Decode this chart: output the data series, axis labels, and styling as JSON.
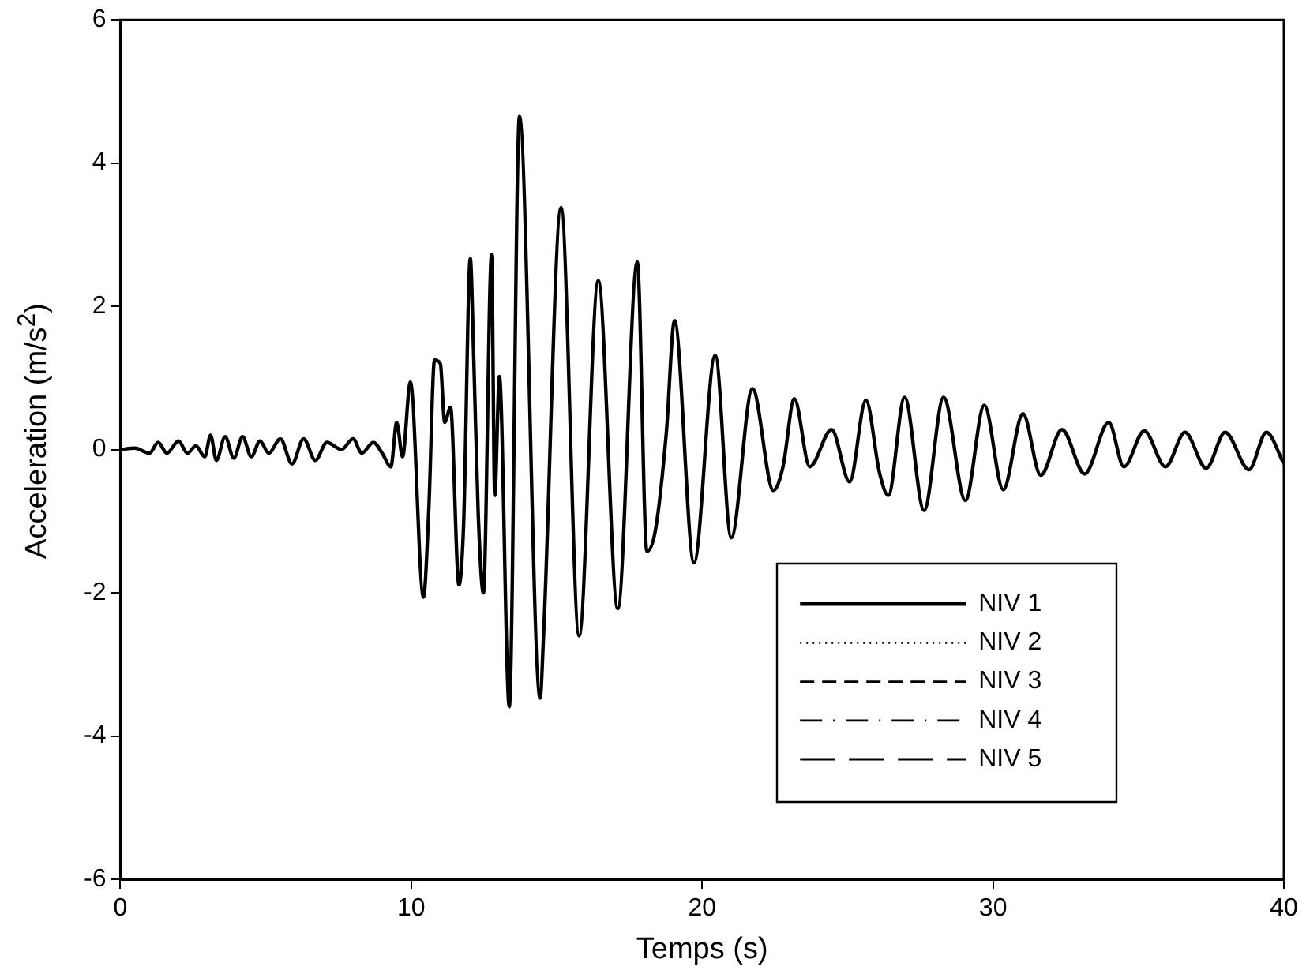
{
  "chart_data": {
    "type": "line",
    "xlabel": "Temps (s)",
    "ylabel": "Acceleration (m/s$^{2}$)",
    "x": [
      0,
      0.5,
      1,
      1.3,
      1.6,
      2,
      2.3,
      2.6,
      2.9,
      3.1,
      3.3,
      3.6,
      3.9,
      4.2,
      4.5,
      4.8,
      5.1,
      5.5,
      5.9,
      6.3,
      6.7,
      7.1,
      7.6,
      8,
      8.3,
      8.7,
      9,
      9.3,
      9.5,
      9.7,
      9.97,
      10.42,
      10.6,
      10.8,
      11,
      11.15,
      11.35,
      11.64,
      11.8,
      12.03,
      12.15,
      12.3,
      12.48,
      12.76,
      12.87,
      13.03,
      13.37,
      13.72,
      14.43,
      14.55,
      15.15,
      15.77,
      16.43,
      17.1,
      17.77,
      18.1,
      18.4,
      18.77,
      19.05,
      19.72,
      20.45,
      21,
      21.73,
      22.45,
      22.78,
      23.17,
      23.7,
      24.45,
      25.07,
      25.63,
      26.1,
      26.4,
      26.96,
      27.63,
      28.3,
      29.05,
      29.7,
      30.35,
      31.03,
      31.64,
      32.37,
      33.15,
      33.98,
      34.5,
      35.2,
      35.93,
      36.6,
      37.33,
      37.98,
      38.8,
      39.4,
      40
    ],
    "series": [
      {
        "name": "NIV 1",
        "color": "#000000",
        "line_style": "solid",
        "values": [
          0,
          0.02,
          -0.05,
          0.1,
          -0.05,
          0.12,
          -0.05,
          0.05,
          -0.1,
          0.2,
          -0.15,
          0.18,
          -0.12,
          0.18,
          -0.1,
          0.12,
          -0.05,
          0.15,
          -0.2,
          0.15,
          -0.15,
          0.1,
          0,
          0.15,
          -0.05,
          0.1,
          -0.05,
          -0.24,
          0.38,
          -0.1,
          0.94,
          -2.06,
          -0.87,
          1.25,
          1.2,
          0.38,
          0.59,
          -1.89,
          -1.04,
          2.67,
          1.25,
          -0.87,
          -2,
          2.72,
          -0.64,
          1.02,
          -3.59,
          4.65,
          -3.47,
          -2.58,
          3.38,
          -2.6,
          2.36,
          -2.22,
          2.62,
          -1.42,
          -1.11,
          0.24,
          1.8,
          -1.58,
          1.32,
          -1.23,
          0.85,
          -0.57,
          -0.24,
          0.71,
          -0.24,
          0.28,
          -0.45,
          0.69,
          -0.33,
          -0.64,
          0.73,
          -0.85,
          0.73,
          -0.71,
          0.62,
          -0.56,
          0.5,
          -0.36,
          0.28,
          -0.34,
          0.38,
          -0.24,
          0.26,
          -0.24,
          0.24,
          -0.26,
          0.24,
          -0.28,
          0.24,
          -0.2
        ]
      },
      {
        "name": "NIV 2",
        "color": "#000000",
        "line_style": "dotted",
        "values": [
          null,
          null,
          null,
          null,
          null,
          null,
          null,
          null,
          null,
          null,
          null,
          null,
          null,
          null,
          null,
          null,
          null,
          null,
          null,
          null,
          null,
          null,
          null,
          null,
          null,
          null,
          null,
          null,
          null,
          null,
          null,
          null,
          null,
          null,
          null,
          null,
          null,
          null,
          null,
          null,
          null,
          null,
          null,
          null,
          null,
          null,
          null,
          null,
          null,
          null,
          null,
          null,
          null,
          null,
          null,
          null,
          null,
          null,
          null,
          null,
          null,
          null,
          null,
          null,
          null,
          null,
          null,
          null,
          null,
          null,
          null,
          null,
          null,
          null,
          null,
          null,
          null,
          null,
          null,
          null,
          null,
          null,
          null,
          null,
          null,
          null,
          null,
          null,
          null,
          null,
          null,
          null
        ]
      },
      {
        "name": "NIV 3",
        "color": "#000000",
        "line_style": "dashed",
        "values": [
          null,
          null,
          null,
          null,
          null,
          null,
          null,
          null,
          null,
          null,
          null,
          null,
          null,
          null,
          null,
          null,
          null,
          null,
          null,
          null,
          null,
          null,
          null,
          null,
          null,
          null,
          null,
          null,
          null,
          null,
          null,
          null,
          null,
          null,
          null,
          null,
          null,
          null,
          null,
          null,
          null,
          null,
          null,
          null,
          null,
          null,
          null,
          null,
          null,
          null,
          null,
          null,
          null,
          null,
          null,
          null,
          null,
          null,
          null,
          null,
          null,
          null,
          null,
          null,
          null,
          null,
          null,
          null,
          null,
          null,
          null,
          null,
          null,
          null,
          null,
          null,
          null,
          null,
          null,
          null,
          null,
          null,
          null,
          null,
          null,
          null,
          null,
          null,
          null,
          null,
          null,
          null
        ]
      },
      {
        "name": "NIV 4",
        "color": "#000000",
        "line_style": "dashdot",
        "values": [
          null,
          null,
          null,
          null,
          null,
          null,
          null,
          null,
          null,
          null,
          null,
          null,
          null,
          null,
          null,
          null,
          null,
          null,
          null,
          null,
          null,
          null,
          null,
          null,
          null,
          null,
          null,
          null,
          null,
          null,
          null,
          null,
          null,
          null,
          null,
          null,
          null,
          null,
          null,
          null,
          null,
          null,
          null,
          null,
          null,
          null,
          null,
          null,
          null,
          null,
          null,
          null,
          null,
          null,
          null,
          null,
          null,
          null,
          null,
          null,
          null,
          null,
          null,
          null,
          null,
          null,
          null,
          null,
          null,
          null,
          null,
          null,
          null,
          null,
          null,
          null,
          null,
          null,
          null,
          null,
          null,
          null,
          null,
          null,
          null,
          null,
          null,
          null,
          null,
          null,
          null,
          null
        ]
      },
      {
        "name": "NIV 5",
        "color": "#000000",
        "line_style": "longdash",
        "values": [
          null,
          null,
          null,
          null,
          null,
          null,
          null,
          null,
          null,
          null,
          null,
          null,
          null,
          null,
          null,
          null,
          null,
          null,
          null,
          null,
          null,
          null,
          null,
          null,
          null,
          null,
          null,
          null,
          null,
          null,
          null,
          null,
          null,
          null,
          null,
          null,
          null,
          null,
          null,
          null,
          null,
          null,
          null,
          null,
          null,
          null,
          null,
          null,
          null,
          null,
          null,
          null,
          null,
          null,
          null,
          null,
          null,
          null,
          null,
          null,
          null,
          null,
          null,
          null,
          null,
          null,
          null,
          null,
          null,
          null,
          null,
          null,
          null,
          null,
          null,
          null,
          null,
          null,
          null,
          null,
          null,
          null,
          null,
          null,
          null,
          null,
          null,
          null,
          null,
          null,
          null,
          null
        ]
      }
    ],
    "xlim": [
      0,
      40
    ],
    "xticks": [
      0,
      10,
      20,
      30,
      40
    ],
    "ylim": [
      -6,
      6
    ],
    "yticks": [
      -6,
      -4,
      -2,
      0,
      2,
      4,
      6
    ],
    "grid": false,
    "legend": "bottom right",
    "marker": "none"
  }
}
